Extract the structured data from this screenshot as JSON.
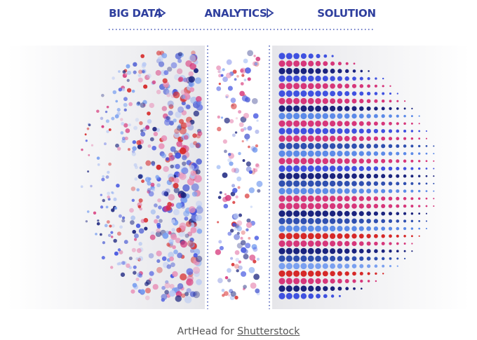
{
  "header": {
    "steps": [
      "BIG DATA",
      "ANALYTICS",
      "SOLUTION"
    ]
  },
  "caption": {
    "text": "ArtHead for",
    "link": "Shutterstock"
  }
}
